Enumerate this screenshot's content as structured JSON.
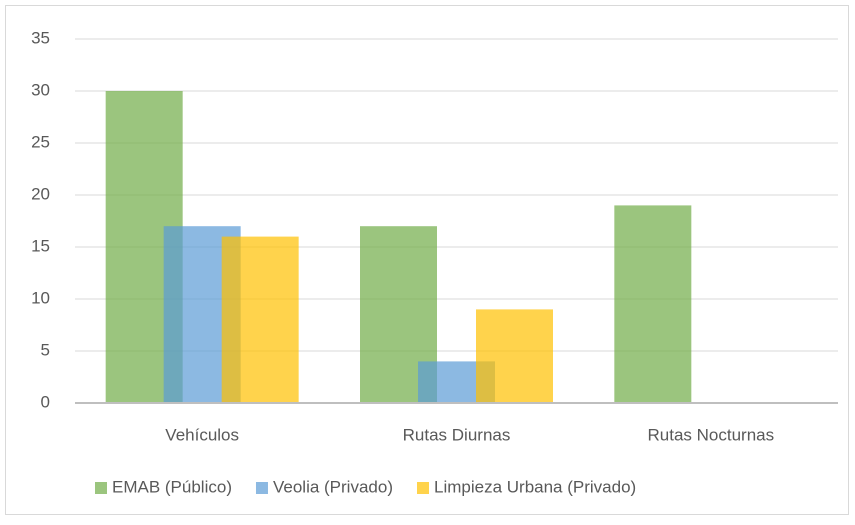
{
  "chart_data": {
    "type": "bar",
    "categories": [
      "Vehículos",
      "Rutas Diurnas",
      "Rutas Nocturnas"
    ],
    "series": [
      {
        "name": "EMAB (Público)",
        "color": "#70ad47",
        "values": [
          30,
          17,
          19
        ]
      },
      {
        "name": "Veolia (Privado)",
        "color": "#5b9bd5",
        "values": [
          17,
          4,
          0
        ]
      },
      {
        "name": "Limpieza Urbana (Privado)",
        "color": "#ffc000",
        "values": [
          16,
          9,
          0
        ]
      }
    ],
    "ylim": [
      0,
      35
    ],
    "yticks": [
      0,
      5,
      10,
      15,
      20,
      25,
      30,
      35
    ],
    "grid": true,
    "legend": "bottom"
  }
}
